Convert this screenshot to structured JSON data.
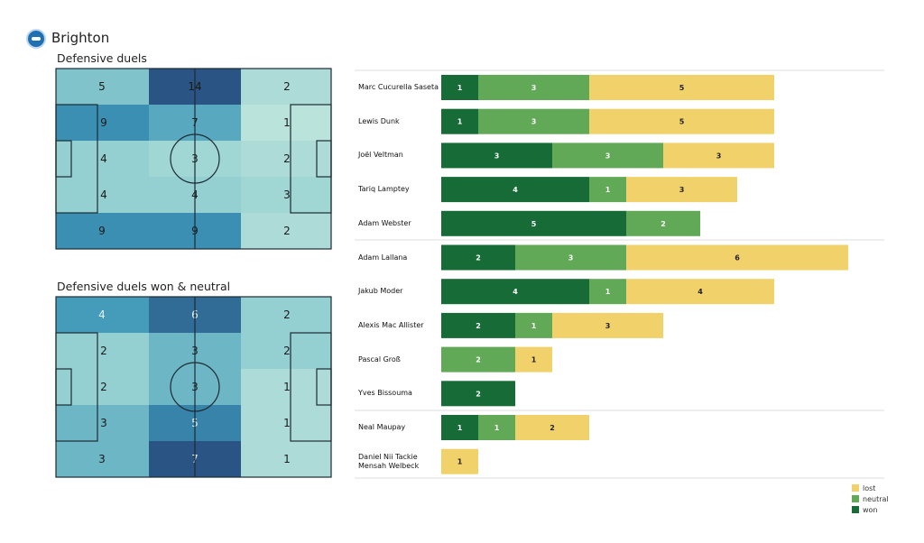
{
  "header": {
    "team": "Brighton"
  },
  "colors": {
    "won": "#176b37",
    "neutral": "#62a957",
    "lost": "#f1d26a"
  },
  "chart_data": [
    {
      "type": "heatmap",
      "title": "Defensive duels",
      "values": [
        [
          5,
          14,
          2
        ],
        [
          9,
          7,
          1
        ],
        [
          4,
          3,
          2
        ],
        [
          4,
          4,
          3
        ],
        [
          9,
          9,
          2
        ]
      ]
    },
    {
      "type": "heatmap",
      "title": "Defensive duels won & neutral",
      "values": [
        [
          4,
          6,
          2
        ],
        [
          2,
          3,
          2
        ],
        [
          2,
          3,
          1
        ],
        [
          3,
          5,
          1
        ],
        [
          3,
          7,
          1
        ]
      ]
    },
    {
      "type": "bar",
      "orientation": "horizontal",
      "stacked": true,
      "legend": [
        "lost",
        "neutral",
        "won"
      ],
      "legend_position": "bottom-right",
      "players": [
        {
          "name": "Marc Cucurella Saseta",
          "won": 1,
          "neutral": 3,
          "lost": 5
        },
        {
          "name": "Lewis Dunk",
          "won": 1,
          "neutral": 3,
          "lost": 5
        },
        {
          "name": "Joël Veltman",
          "won": 3,
          "neutral": 3,
          "lost": 3
        },
        {
          "name": "Tariq Lamptey",
          "won": 4,
          "neutral": 1,
          "lost": 3
        },
        {
          "name": "Adam Webster",
          "won": 5,
          "neutral": 2,
          "lost": 0
        },
        {
          "name": "Adam Lallana",
          "won": 2,
          "neutral": 3,
          "lost": 6
        },
        {
          "name": "Jakub Moder",
          "won": 4,
          "neutral": 1,
          "lost": 4
        },
        {
          "name": "Alexis Mac Allister",
          "won": 2,
          "neutral": 1,
          "lost": 3
        },
        {
          "name": "Pascal Groß",
          "won": 0,
          "neutral": 2,
          "lost": 1
        },
        {
          "name": "Yves Bissouma",
          "won": 2,
          "neutral": 0,
          "lost": 0
        },
        {
          "name": "Neal Maupay",
          "won": 1,
          "neutral": 1,
          "lost": 2
        },
        {
          "name": "Daniel Nii Tackie Mensah Welbeck",
          "won": 0,
          "neutral": 0,
          "lost": 1
        }
      ]
    }
  ]
}
